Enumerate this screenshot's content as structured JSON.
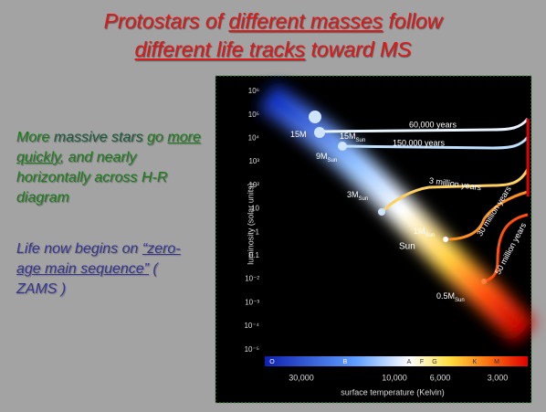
{
  "title": {
    "line1": [
      "Protostars of ",
      "different masses",
      " follow"
    ],
    "line2": [
      "different life tracks",
      " toward MS"
    ]
  },
  "left_text": {
    "para1": [
      "More ",
      "massive stars",
      " go ",
      "more quickly",
      ", and nearly horizontally across H-R diagram"
    ],
    "para2": [
      "Life now begins on ",
      "“zero-age main sequence”",
      " ( ZAMS )"
    ]
  },
  "figure": {
    "y_axis_label": "luminosity (solar units)",
    "y_tick_labels": [
      "10⁶",
      "10⁵",
      "10⁴",
      "10³",
      "10²",
      "10",
      "1",
      "0.1",
      "10⁻²",
      "10⁻³",
      "10⁻⁴",
      "10⁻⁵"
    ],
    "x_axis_label": "surface temperature (Kelvin)",
    "x_tick_labels": [
      "30,000",
      "10,000",
      "6,000",
      "3,000"
    ],
    "spectral_classes": [
      "O",
      "B",
      "A",
      "F",
      "G",
      "K",
      "M"
    ],
    "track_labels": [
      "60,000 years",
      "150,000 years",
      "3 million years",
      "30 million years",
      "50 million years"
    ],
    "mass_labels": [
      {
        "mass": "15M",
        "sub": "Sun"
      },
      {
        "mass": "9M",
        "sub": "Sun"
      },
      {
        "mass": "3M",
        "sub": "Sun"
      },
      {
        "mass": "1M",
        "sub": "Sun"
      },
      {
        "mass": "0.5M",
        "sub": "Sun"
      }
    ],
    "sun_label": "Sun"
  }
}
